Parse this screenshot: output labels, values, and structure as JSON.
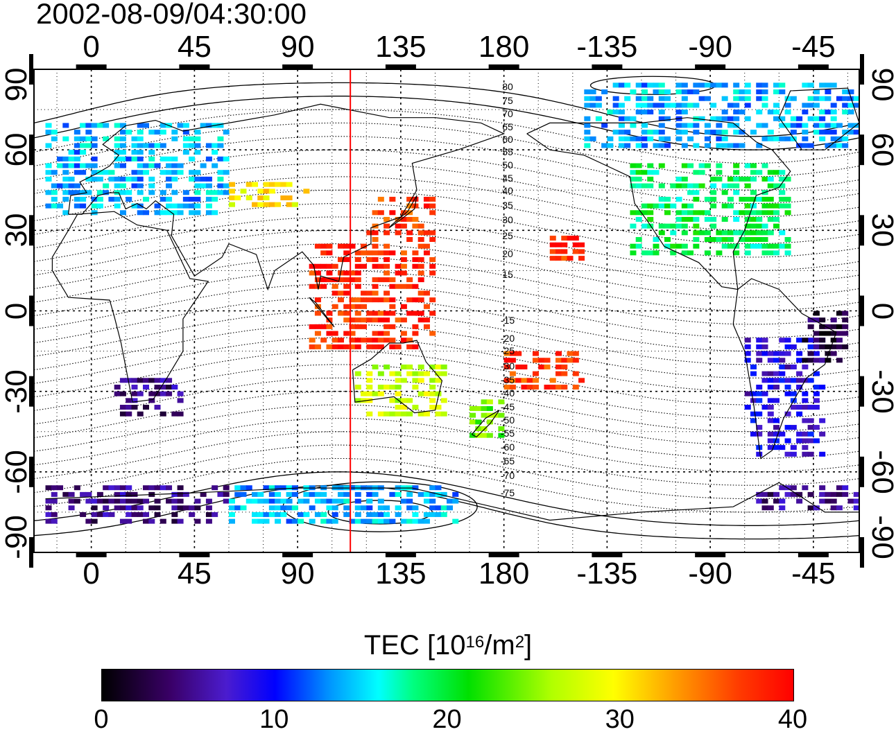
{
  "title": "2002-08-09/04:30:00",
  "axes": {
    "x_ticks": [
      "0",
      "45",
      "90",
      "135",
      "180",
      "-135",
      "-90",
      "-45"
    ],
    "y_ticks": [
      "90",
      "60",
      "30",
      "0",
      "-30",
      "-60",
      "-90"
    ]
  },
  "contour_labels": [
    "80",
    "75",
    "70",
    "65",
    "60",
    "55",
    "50",
    "45",
    "40",
    "35",
    "30",
    "25",
    "20",
    "15",
    "-15",
    "-20",
    "-25",
    "-30",
    "-35",
    "-40",
    "-45",
    "-50",
    "-55",
    "-60",
    "-65",
    "-70",
    "-75"
  ],
  "colorbar": {
    "title_main": "TEC  [10",
    "title_exp1": "16",
    "title_mid": "/m",
    "title_exp2": "2",
    "title_end": "]",
    "ticks": [
      "0",
      "10",
      "20",
      "30",
      "40"
    ],
    "min": 0,
    "max": 40
  },
  "colors": {
    "meridian_line": "#ff0000",
    "frame": "#000000"
  },
  "chart_data": {
    "type": "heatmap",
    "x": "longitude",
    "y": "latitude",
    "xlim": [
      -25,
      335
    ],
    "ylim": [
      -90,
      90
    ],
    "meridian_marker_lon": 113,
    "value_range": [
      0,
      40
    ],
    "regions": [
      {
        "lon": [
          -20,
          60
        ],
        "lat": [
          35,
          70
        ],
        "tec": 14
      },
      {
        "lon": [
          60,
          95
        ],
        "lat": [
          38,
          48
        ],
        "tec": 30
      },
      {
        "lon": [
          120,
          150
        ],
        "lat": [
          25,
          42
        ],
        "tec": 37
      },
      {
        "lon": [
          95,
          150
        ],
        "lat": [
          -15,
          25
        ],
        "tec": 38
      },
      {
        "lon": [
          115,
          155
        ],
        "lat": [
          -40,
          -20
        ],
        "tec": 27
      },
      {
        "lon": [
          165,
          180
        ],
        "lat": [
          -48,
          -35
        ],
        "tec": 24
      },
      {
        "lon": [
          180,
          215
        ],
        "lat": [
          -30,
          -15
        ],
        "tec": 37
      },
      {
        "lon": [
          200,
          215
        ],
        "lat": [
          18,
          28
        ],
        "tec": 38
      },
      {
        "lon": [
          235,
          305
        ],
        "lat": [
          20,
          55
        ],
        "tec": 19
      },
      {
        "lon": [
          215,
          335
        ],
        "lat": [
          60,
          85
        ],
        "tec": 14
      },
      {
        "lon": [
          285,
          320
        ],
        "lat": [
          -55,
          -10
        ],
        "tec": 8
      },
      {
        "lon": [
          310,
          330
        ],
        "lat": [
          -20,
          0
        ],
        "tec": 3
      },
      {
        "lon": [
          10,
          40
        ],
        "lat": [
          -40,
          -25
        ],
        "tec": 5
      },
      {
        "lon": [
          -20,
          60
        ],
        "lat": [
          -80,
          -65
        ],
        "tec": 5
      },
      {
        "lon": [
          60,
          160
        ],
        "lat": [
          -80,
          -65
        ],
        "tec": 14
      },
      {
        "lon": [
          290,
          335
        ],
        "lat": [
          -75,
          -65
        ],
        "tec": 5
      }
    ]
  }
}
